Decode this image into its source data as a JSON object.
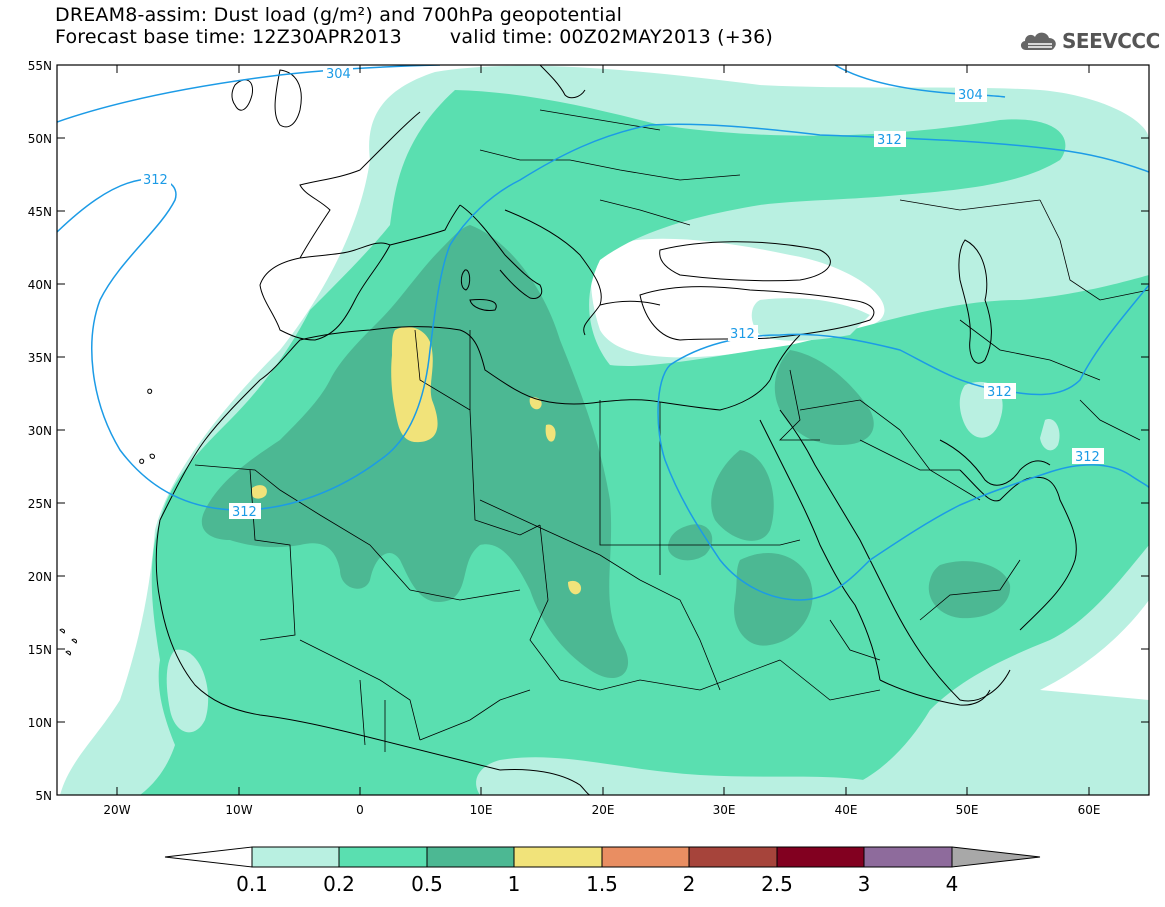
{
  "header": {
    "title": "DREAM8-assim: Dust load (g/m²) and 700hPa geopotential",
    "base_time": "Forecast base time: 12Z30APR2013",
    "valid_time": "valid time: 00Z02MAY2013 (+36)"
  },
  "logo": {
    "text": "SEEVCCC",
    "icon": "cloud-icon"
  },
  "map": {
    "lon_labels": [
      "20W",
      "10W",
      "0",
      "10E",
      "20E",
      "30E",
      "40E",
      "50E",
      "60E"
    ],
    "lat_labels": [
      "55N",
      "50N",
      "45N",
      "40N",
      "35N",
      "30N",
      "25N",
      "20N",
      "15N",
      "10N",
      "5N"
    ],
    "contour_labels": [
      "304",
      "304",
      "312",
      "312",
      "312",
      "312",
      "312",
      "312"
    ]
  },
  "legend": {
    "ticks": [
      "0.1",
      "0.2",
      "0.5",
      "1",
      "1.5",
      "2",
      "2.5",
      "3",
      "4"
    ],
    "colors": [
      "#ffffff",
      "#b9f0e1",
      "#5adfb0",
      "#4cb893",
      "#f1e37a",
      "#e98e62",
      "#a6443b",
      "#820020",
      "#8e6b9c",
      "#a8a8a8"
    ]
  }
}
